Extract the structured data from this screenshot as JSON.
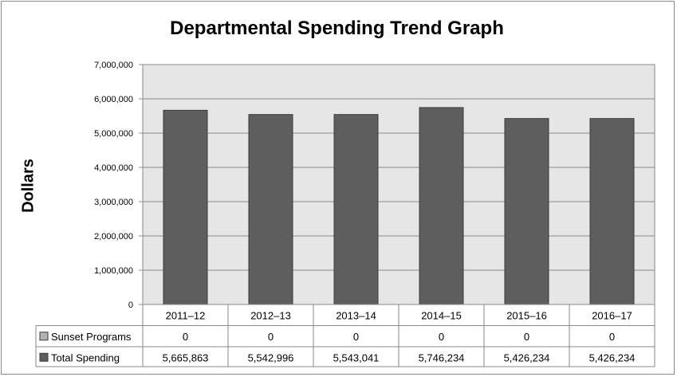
{
  "chart_data": {
    "type": "bar",
    "title": "Departmental Spending Trend Graph",
    "xlabel": "",
    "ylabel": "Dollars",
    "ylim": [
      0,
      7000000
    ],
    "y_ticks": [
      "0",
      "1,000,000",
      "2,000,000",
      "3,000,000",
      "4,000,000",
      "5,000,000",
      "6,000,000",
      "7,000,000"
    ],
    "categories": [
      "2011–12",
      "2012–13",
      "2013–14",
      "2014–15",
      "2015–16",
      "2016–17"
    ],
    "series": [
      {
        "name": "Sunset Programs",
        "color": "#b3b3b3",
        "values": [
          0,
          0,
          0,
          0,
          0,
          0
        ],
        "labels": [
          "0",
          "0",
          "0",
          "0",
          "0",
          "0"
        ]
      },
      {
        "name": "Total Spending",
        "color": "#5e5e5e",
        "values": [
          5665863,
          5542996,
          5543041,
          5746234,
          5426234,
          5426234
        ],
        "labels": [
          "5,665,863",
          "5,542,996",
          "5,543,041",
          "5,746,234",
          "5,426,234",
          "5,426,234"
        ]
      }
    ],
    "grid": true,
    "plot_background": "#e6e6e6",
    "data_table": true
  }
}
